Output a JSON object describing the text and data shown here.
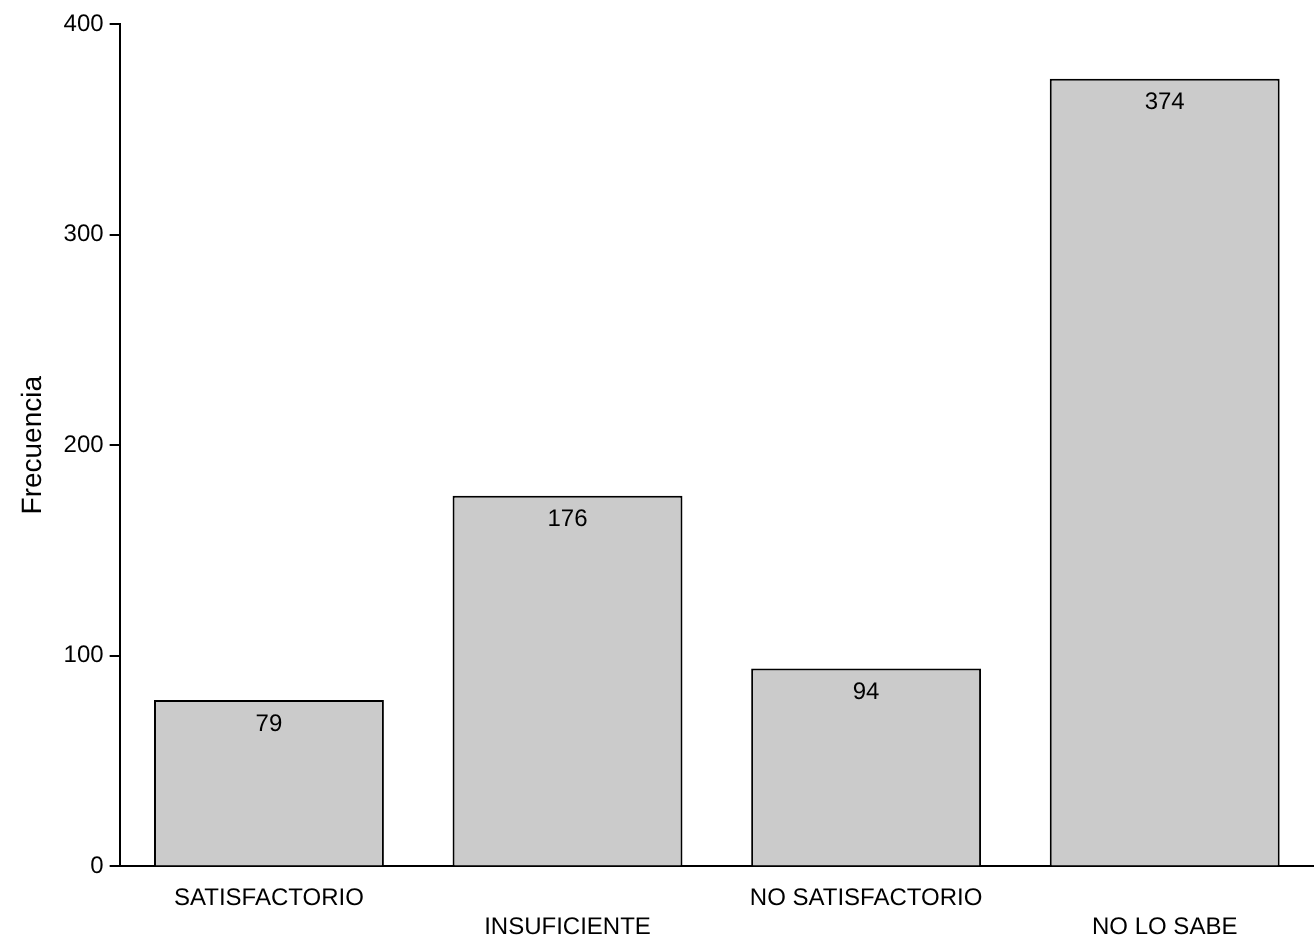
{
  "chart_data": {
    "type": "bar",
    "ylabel": "Frecuencia",
    "categories": [
      "SATISFACTORIO",
      "INSUFICIENTE",
      "NO SATISFACTORIO",
      "NO LO SABE"
    ],
    "values": [
      79,
      176,
      94,
      374
    ],
    "color": "#cbcbcb",
    "ylim": [
      0,
      400
    ],
    "yticks": [
      0,
      100,
      200,
      300,
      400
    ],
    "grid": false,
    "legend": false,
    "data_labels": true
  }
}
